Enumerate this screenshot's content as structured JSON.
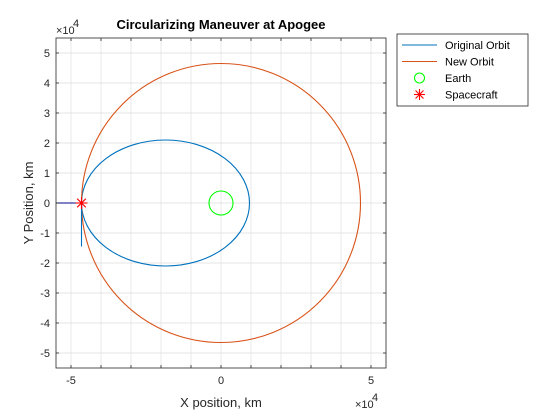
{
  "chart_data": {
    "type": "line",
    "title": "Circularizing Maneuver at Apogee",
    "xlabel": "X position, km",
    "ylabel": "Y Position, km",
    "xlim": [
      -55000,
      55000
    ],
    "ylim": [
      -55000,
      55000
    ],
    "x_ticks": [
      -5,
      0,
      5
    ],
    "y_ticks": [
      -5,
      -4,
      -3,
      -2,
      -1,
      0,
      1,
      2,
      3,
      4,
      5
    ],
    "x_tick_labels": [
      "-5",
      "0",
      "5"
    ],
    "y_tick_labels": [
      "-5",
      "-4",
      "-3",
      "-2",
      "-1",
      "0",
      "1",
      "2",
      "3",
      "4",
      "5"
    ],
    "tick_multiplier": "×10",
    "tick_exponent": "4",
    "grid": true,
    "legend_position": "outside-top-right",
    "series": [
      {
        "name": "Original Orbit",
        "kind": "ellipse",
        "center": [
          -18500,
          0
        ],
        "semi_axes": [
          28000,
          21000
        ],
        "color": "#0072bd"
      },
      {
        "name": "New Orbit",
        "kind": "circle",
        "center": [
          0,
          0
        ],
        "radius": 46500,
        "color": "#d95319"
      },
      {
        "name": "Earth",
        "kind": "marker-circle",
        "center": [
          0,
          0
        ],
        "radius": 4000,
        "color": "#00ff00"
      },
      {
        "name": "Spacecraft",
        "kind": "marker-star",
        "position": [
          -46500,
          0
        ],
        "color": "#ff0000"
      }
    ],
    "velocity_vectors": [
      {
        "from": [
          -46500,
          0
        ],
        "to": [
          -46500,
          -14500
        ],
        "color": "#0072bd"
      },
      {
        "from": [
          -46500,
          0
        ],
        "to": [
          -55000,
          0
        ],
        "color": "#00008b"
      }
    ]
  }
}
